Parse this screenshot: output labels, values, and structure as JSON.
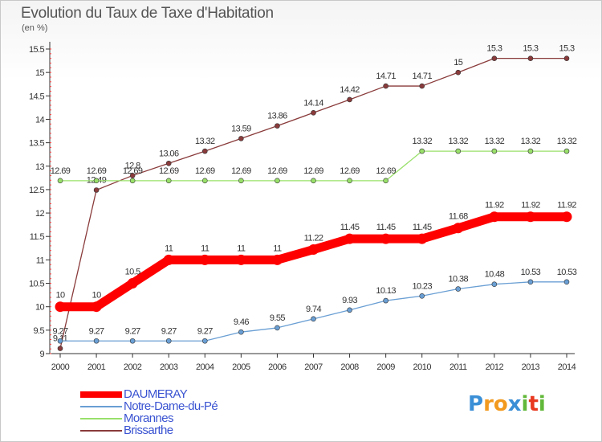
{
  "chart_data": {
    "type": "line",
    "title": "Evolution du Taux de Taxe d'Habitation",
    "subtitle": "(en %)",
    "x": [
      "2000",
      "2001",
      "2002",
      "2003",
      "2004",
      "2005",
      "2006",
      "2007",
      "2008",
      "2009",
      "2010",
      "2011",
      "2012",
      "2013",
      "2014"
    ],
    "ylim": [
      9,
      15.5
    ],
    "yticks": [
      "9",
      "9.5",
      "10",
      "10.5",
      "11",
      "11.5",
      "12",
      "12.5",
      "13",
      "13.5",
      "14",
      "14.5",
      "15",
      "15.5"
    ],
    "grid": false,
    "legend_position": "bottom-left",
    "series": [
      {
        "name": "DAUMERAY",
        "color": "#ff0000",
        "values": [
          10,
          10,
          10.5,
          11,
          11,
          11,
          11,
          11.22,
          11.45,
          11.45,
          11.45,
          11.68,
          11.92,
          11.92,
          11.92
        ],
        "labels": [
          "10",
          "10",
          "10.5",
          "11",
          "11",
          "11",
          "11",
          "11.22",
          "11.45",
          "11.45",
          "11.45",
          "11.68",
          "11.92",
          "11.92",
          "11.92"
        ]
      },
      {
        "name": "Notre-Dame-du-Pé",
        "color": "#6a9fd4",
        "values": [
          9.27,
          9.27,
          9.27,
          9.27,
          9.27,
          9.46,
          9.55,
          9.74,
          9.93,
          10.13,
          10.23,
          10.38,
          10.48,
          10.53,
          10.53
        ],
        "labels": [
          "9.27",
          "9.27",
          "9.27",
          "9.27",
          "9.27",
          "9.46",
          "9.55",
          "9.74",
          "9.93",
          "10.13",
          "10.23",
          "10.38",
          "10.48",
          "10.53",
          "10.53"
        ]
      },
      {
        "name": "Morannes",
        "color": "#99e06a",
        "values": [
          12.69,
          12.69,
          12.69,
          12.69,
          12.69,
          12.69,
          12.69,
          12.69,
          12.69,
          12.69,
          13.32,
          13.32,
          13.32,
          13.32,
          13.32
        ],
        "labels": [
          "12.69",
          "12.69",
          "12.69",
          "12.69",
          "12.69",
          "12.69",
          "12.69",
          "12.69",
          "12.69",
          "12.69",
          "13.32",
          "13.32",
          "13.32",
          "13.32",
          "13.32"
        ]
      },
      {
        "name": "Brissarthe",
        "color": "#8a3b3b",
        "values": [
          9.11,
          12.49,
          12.8,
          13.06,
          13.32,
          13.59,
          13.86,
          14.14,
          14.42,
          14.71,
          14.71,
          15,
          15.3,
          15.3,
          15.3
        ],
        "labels": [
          "9.11",
          "12.49",
          "12.8",
          "13.06",
          "13.32",
          "13.59",
          "13.86",
          "14.14",
          "14.42",
          "14.71",
          "14.71",
          "15",
          "15.3",
          "15.3",
          "15.3"
        ]
      }
    ]
  },
  "logo": {
    "text": "Proxiti"
  }
}
